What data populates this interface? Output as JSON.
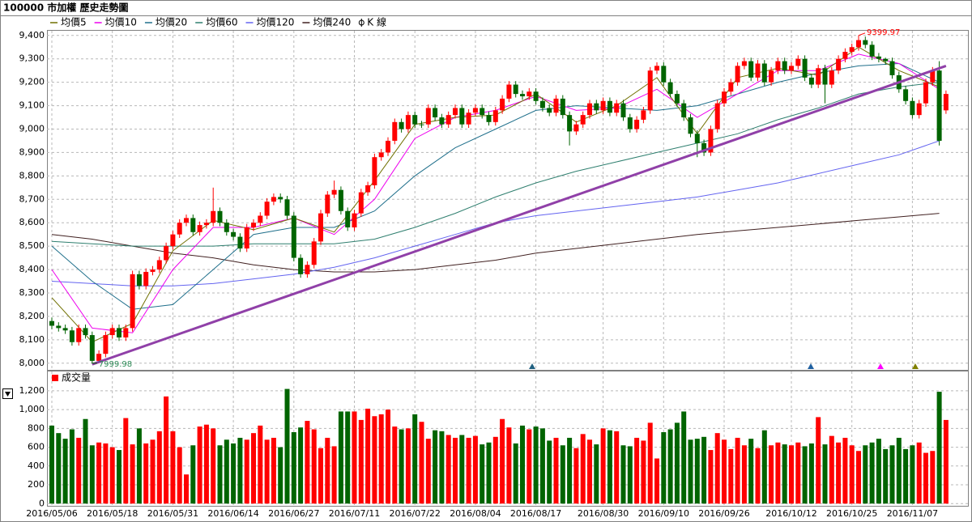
{
  "chart_data": {
    "type": "candlestick",
    "title": "100000 市加權  歷史走勢圖",
    "kline_name": "K 線",
    "up_color": "#ff0000",
    "down_color": "#006400",
    "grid": true,
    "categories": [
      "2016/05/06",
      null,
      null,
      null,
      null,
      null,
      null,
      null,
      null,
      "2016/05/18",
      null,
      null,
      null,
      null,
      null,
      null,
      null,
      null,
      "2016/05/31",
      null,
      null,
      null,
      null,
      null,
      null,
      null,
      null,
      "2016/06/14",
      null,
      null,
      null,
      null,
      null,
      null,
      null,
      null,
      "2016/06/27",
      null,
      null,
      null,
      null,
      null,
      null,
      null,
      null,
      "2016/07/11",
      null,
      null,
      null,
      null,
      null,
      null,
      null,
      null,
      "2016/07/22",
      null,
      null,
      null,
      null,
      null,
      null,
      null,
      null,
      "2016/08/04",
      null,
      null,
      null,
      null,
      null,
      null,
      null,
      null,
      "2016/08/17",
      null,
      null,
      null,
      null,
      null,
      null,
      null,
      null,
      null,
      "2016/08/30",
      null,
      null,
      null,
      null,
      null,
      null,
      null,
      null,
      "2016/09/10",
      null,
      null,
      null,
      null,
      null,
      null,
      null,
      null,
      "2016/09/26",
      null,
      null,
      null,
      null,
      null,
      null,
      null,
      null,
      null,
      "2016/10/12",
      null,
      null,
      null,
      null,
      null,
      null,
      null,
      null,
      "2016/10/25",
      null,
      null,
      null,
      null,
      null,
      null,
      null,
      null,
      "2016/11/07",
      null,
      null,
      null,
      null,
      null
    ],
    "open": [
      8180,
      8160,
      8150,
      8140,
      8090,
      8150,
      8120,
      8010,
      8040,
      8120,
      8150,
      8110,
      8150,
      8380,
      8330,
      8390,
      8400,
      8440,
      8500,
      8550,
      8600,
      8620,
      8560,
      8590,
      8600,
      8650,
      8600,
      8560,
      8540,
      8490,
      8580,
      8600,
      8630,
      8690,
      8710,
      8700,
      8630,
      8450,
      8380,
      8420,
      8520,
      8640,
      8720,
      8740,
      8650,
      8580,
      8640,
      8730,
      8760,
      8880,
      8900,
      8950,
      9030,
      9000,
      9060,
      9020,
      9020,
      9090,
      9050,
      9020,
      9060,
      9090,
      9020,
      9070,
      9090,
      9060,
      9030,
      9080,
      9130,
      9190,
      9150,
      9140,
      9160,
      9120,
      9090,
      9070,
      9130,
      9060,
      8990,
      9020,
      9060,
      9110,
      9080,
      9120,
      9070,
      9110,
      9050,
      9000,
      9040,
      9080,
      9250,
      9270,
      9200,
      9150,
      9110,
      9050,
      8980,
      8940,
      8900,
      9000,
      9110,
      9160,
      9200,
      9270,
      9290,
      9220,
      9280,
      9200,
      9250,
      9290,
      9250,
      9270,
      9300,
      9220,
      9190,
      9260,
      9190,
      9250,
      9300,
      9330,
      9350,
      9380,
      9360,
      9310,
      9300,
      9290,
      9230,
      9170,
      9120,
      9060,
      9110,
      9200,
      9250,
      9080
    ],
    "high": [
      8195,
      8175,
      8165,
      8155,
      8165,
      8165,
      8135,
      8055,
      8135,
      8165,
      8165,
      8165,
      8395,
      8395,
      8405,
      8415,
      8455,
      8515,
      8565,
      8615,
      8635,
      8635,
      8605,
      8615,
      8750,
      8665,
      8615,
      8575,
      8555,
      8595,
      8615,
      8645,
      8705,
      8725,
      8725,
      8715,
      8645,
      8465,
      8435,
      8535,
      8655,
      8735,
      8780,
      8755,
      8665,
      8655,
      8745,
      8775,
      8895,
      8915,
      8965,
      9045,
      9045,
      9075,
      9075,
      9035,
      9105,
      9105,
      9065,
      9075,
      9105,
      9105,
      9085,
      9105,
      9105,
      9075,
      9095,
      9145,
      9205,
      9205,
      9165,
      9175,
      9175,
      9135,
      9105,
      9145,
      9145,
      9075,
      9035,
      9075,
      9125,
      9125,
      9135,
      9135,
      9125,
      9125,
      9065,
      9055,
      9095,
      9265,
      9285,
      9285,
      9215,
      9165,
      9125,
      9065,
      8995,
      8955,
      9015,
      9125,
      9175,
      9215,
      9285,
      9305,
      9305,
      9295,
      9295,
      9265,
      9305,
      9305,
      9285,
      9315,
      9315,
      9235,
      9275,
      9275,
      9265,
      9315,
      9345,
      9365,
      9399.97,
      9395,
      9375,
      9325,
      9305,
      9305,
      9245,
      9185,
      9135,
      9125,
      9215,
      9265,
      9290,
      9165
    ],
    "low": [
      8145,
      8135,
      8125,
      8075,
      8075,
      8105,
      7999.98,
      8000,
      8025,
      8105,
      8095,
      8095,
      8135,
      8315,
      8315,
      8375,
      8385,
      8425,
      8485,
      8535,
      8585,
      8545,
      8545,
      8575,
      8585,
      8585,
      8545,
      8525,
      8475,
      8475,
      8565,
      8585,
      8615,
      8675,
      8685,
      8615,
      8435,
      8365,
      8365,
      8405,
      8505,
      8625,
      8705,
      8635,
      8565,
      8565,
      8625,
      8715,
      8745,
      8865,
      8885,
      8935,
      8985,
      8985,
      9005,
      9005,
      9005,
      9035,
      9005,
      9005,
      9045,
      9005,
      9005,
      9055,
      9045,
      9015,
      9015,
      9065,
      9115,
      9135,
      9125,
      9125,
      9105,
      9075,
      9055,
      9055,
      9045,
      8930,
      8975,
      9005,
      9045,
      9065,
      9065,
      9055,
      9055,
      9035,
      8985,
      8985,
      9025,
      9065,
      9235,
      9185,
      9135,
      9095,
      9035,
      8965,
      8880,
      8885,
      8885,
      8985,
      9095,
      9145,
      9185,
      9255,
      9205,
      9205,
      9185,
      9185,
      9235,
      9235,
      9235,
      9255,
      9205,
      9175,
      9175,
      9110,
      9175,
      9235,
      9285,
      9315,
      9335,
      9345,
      9295,
      9285,
      9275,
      9215,
      9155,
      9105,
      9045,
      9045,
      9095,
      9185,
      8930,
      9065
    ],
    "close": [
      8160,
      8150,
      8140,
      8090,
      8150,
      8120,
      8010,
      8040,
      8120,
      8150,
      8110,
      8150,
      8380,
      8330,
      8390,
      8400,
      8440,
      8500,
      8550,
      8600,
      8620,
      8560,
      8590,
      8600,
      8650,
      8600,
      8560,
      8540,
      8490,
      8580,
      8600,
      8630,
      8690,
      8710,
      8700,
      8630,
      8450,
      8380,
      8420,
      8520,
      8640,
      8720,
      8740,
      8650,
      8580,
      8640,
      8730,
      8760,
      8880,
      8900,
      8950,
      9030,
      9000,
      9060,
      9020,
      9020,
      9090,
      9050,
      9020,
      9060,
      9090,
      9020,
      9070,
      9090,
      9060,
      9030,
      9080,
      9130,
      9190,
      9150,
      9140,
      9160,
      9120,
      9090,
      9070,
      9130,
      9060,
      8990,
      9020,
      9060,
      9110,
      9080,
      9120,
      9070,
      9110,
      9050,
      9000,
      9040,
      9080,
      9250,
      9270,
      9200,
      9150,
      9110,
      9050,
      8980,
      8940,
      8900,
      9000,
      9110,
      9160,
      9200,
      9270,
      9290,
      9220,
      9280,
      9200,
      9250,
      9290,
      9250,
      9270,
      9300,
      9220,
      9190,
      9260,
      9190,
      9250,
      9300,
      9330,
      9350,
      9380,
      9360,
      9310,
      9300,
      9290,
      9230,
      9170,
      9120,
      9060,
      9110,
      9200,
      9250,
      8950,
      9150
    ],
    "ylim": [
      7975,
      9420
    ],
    "yticks": [
      {
        "value": 8000,
        "label": "8,000"
      },
      {
        "value": 8100,
        "label": "8,100"
      },
      {
        "value": 8200,
        "label": "8,200"
      },
      {
        "value": 8300,
        "label": "8,300"
      },
      {
        "value": 8400,
        "label": "8,400"
      },
      {
        "value": 8500,
        "label": "8,500"
      },
      {
        "value": 8600,
        "label": "8,600"
      },
      {
        "value": 8700,
        "label": "8,700"
      },
      {
        "value": 8800,
        "label": "8,800"
      },
      {
        "value": 8900,
        "label": "8,900"
      },
      {
        "value": 9000,
        "label": "9,000"
      },
      {
        "value": 9100,
        "label": "9,100"
      },
      {
        "value": 9200,
        "label": "9,200"
      },
      {
        "value": 9300,
        "label": "9,300"
      },
      {
        "value": 9400,
        "label": "9,400"
      }
    ],
    "lines": [
      {
        "name": "均價5",
        "color": "#707000",
        "x": [
          0,
          6,
          12,
          18,
          24,
          30,
          36,
          42,
          48,
          54,
          60,
          66,
          72,
          78,
          84,
          90,
          96,
          102,
          108,
          114,
          120,
          126,
          132
        ],
        "values": [
          8280,
          8090,
          8170,
          8480,
          8610,
          8570,
          8620,
          8560,
          8780,
          9020,
          9050,
          9060,
          9150,
          9030,
          9100,
          9220,
          8980,
          9220,
          9260,
          9230,
          9350,
          9250,
          9180
        ]
      },
      {
        "name": "均價10",
        "color": "#ee00ee",
        "x": [
          0,
          6,
          12,
          18,
          24,
          30,
          36,
          42,
          48,
          54,
          60,
          66,
          72,
          78,
          84,
          90,
          96,
          102,
          108,
          114,
          120,
          126,
          132
        ],
        "values": [
          8400,
          8150,
          8130,
          8400,
          8580,
          8580,
          8620,
          8550,
          8700,
          8960,
          9050,
          9080,
          9140,
          9080,
          9090,
          9170,
          9050,
          9150,
          9250,
          9250,
          9320,
          9280,
          9170
        ]
      },
      {
        "name": "均價20",
        "color": "#1f6f8b",
        "x": [
          0,
          6,
          12,
          18,
          24,
          30,
          36,
          42,
          48,
          54,
          60,
          66,
          72,
          78,
          84,
          90,
          96,
          102,
          108,
          114,
          120,
          126,
          132
        ],
        "values": [
          8500,
          8350,
          8230,
          8250,
          8400,
          8550,
          8580,
          8580,
          8650,
          8800,
          8920,
          9000,
          9080,
          9100,
          9090,
          9080,
          9100,
          9150,
          9200,
          9240,
          9270,
          9280,
          9200
        ]
      },
      {
        "name": "均價60",
        "color": "#2f7f6f",
        "x": [
          0,
          6,
          12,
          18,
          24,
          30,
          36,
          42,
          48,
          54,
          60,
          66,
          72,
          78,
          84,
          90,
          96,
          102,
          108,
          114,
          120,
          126,
          132
        ],
        "values": [
          8520,
          8510,
          8500,
          8500,
          8500,
          8510,
          8510,
          8510,
          8530,
          8580,
          8640,
          8710,
          8770,
          8820,
          8860,
          8900,
          8940,
          8980,
          9040,
          9090,
          9150,
          9180,
          9200
        ]
      },
      {
        "name": "均價120",
        "color": "#6464f0",
        "x": [
          0,
          6,
          12,
          18,
          24,
          30,
          36,
          42,
          48,
          54,
          60,
          66,
          72,
          78,
          84,
          90,
          96,
          102,
          108,
          114,
          120,
          126,
          132
        ],
        "values": [
          8350,
          8340,
          8330,
          8330,
          8340,
          8360,
          8380,
          8410,
          8450,
          8500,
          8550,
          8600,
          8630,
          8650,
          8670,
          8690,
          8710,
          8740,
          8770,
          8810,
          8850,
          8890,
          8950
        ]
      },
      {
        "name": "均價240",
        "color": "#402020",
        "x": [
          0,
          6,
          12,
          18,
          24,
          30,
          36,
          42,
          48,
          54,
          60,
          66,
          72,
          78,
          84,
          90,
          96,
          102,
          108,
          114,
          120,
          126,
          132
        ],
        "values": [
          8550,
          8530,
          8500,
          8470,
          8450,
          8420,
          8400,
          8390,
          8390,
          8400,
          8420,
          8440,
          8470,
          8490,
          8510,
          8530,
          8550,
          8565,
          8580,
          8595,
          8610,
          8625,
          8640
        ]
      }
    ],
    "trendline": {
      "color": "#9040a8",
      "x": [
        6,
        133
      ],
      "values": [
        7995,
        9270
      ]
    },
    "volume": {
      "name": "成交量",
      "color": "#ff0000",
      "values": [
        830,
        750,
        690,
        790,
        700,
        900,
        620,
        650,
        640,
        600,
        570,
        910,
        630,
        800,
        640,
        680,
        770,
        1140,
        770,
        600,
        310,
        620,
        820,
        840,
        800,
        620,
        680,
        640,
        700,
        680,
        750,
        830,
        680,
        700,
        600,
        1220,
        760,
        810,
        880,
        790,
        590,
        700,
        610,
        980,
        980,
        980,
        890,
        1010,
        930,
        950,
        1000,
        820,
        790,
        800,
        950,
        870,
        690,
        780,
        770,
        730,
        700,
        730,
        700,
        720,
        630,
        650,
        710,
        900,
        810,
        640,
        830,
        790,
        820,
        800,
        670,
        700,
        620,
        700,
        590,
        740,
        680,
        630,
        800,
        780,
        770,
        620,
        610,
        700,
        670,
        860,
        480,
        760,
        790,
        860,
        980,
        680,
        690,
        710,
        570,
        750,
        680,
        580,
        700,
        620,
        690,
        590,
        780,
        620,
        650,
        630,
        620,
        650,
        610,
        640,
        920,
        630,
        720,
        650,
        700,
        620,
        560,
        620,
        650,
        690,
        580,
        620,
        700,
        580,
        620,
        650,
        540,
        560,
        1190,
        890
      ],
      "ylim": [
        -15,
        1380
      ],
      "yticks": [
        0,
        200,
        400,
        600,
        800,
        {
          "value": 1000,
          "label": "1,000"
        },
        {
          "value": 1200,
          "label": "1,200"
        }
      ]
    }
  }
}
